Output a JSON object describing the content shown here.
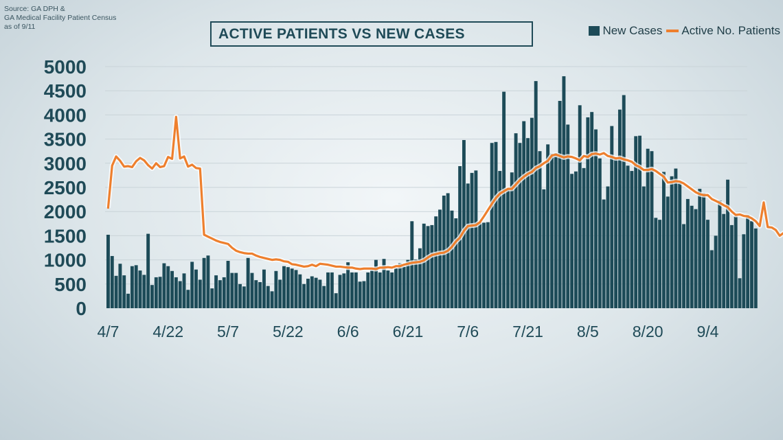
{
  "source": {
    "lines": [
      "Source: GA DPH &",
      "GA Medical Facility Patient Census",
      "as of 9/11"
    ]
  },
  "colors": {
    "bar": "#1d4b58",
    "line": "#ee7f2d",
    "grid": "#c9d3d8",
    "text": "#1f4a57"
  },
  "chart_data": {
    "type": "bar",
    "title": "ACTIVE PATIENTS VS NEW CASES",
    "xlabel": "",
    "ylabel": "",
    "ylim": [
      0,
      5000
    ],
    "grid": true,
    "legend_position": "top-right",
    "y_ticks": [
      0,
      500,
      1000,
      1500,
      2000,
      2500,
      3000,
      3500,
      4000,
      4500,
      5000
    ],
    "x_tick_labels": [
      "4/7",
      "4/22",
      "5/7",
      "5/22",
      "6/6",
      "6/21",
      "7/6",
      "7/21",
      "8/5",
      "8/20",
      "9/4"
    ],
    "x_tick_day_index": [
      0,
      15,
      30,
      45,
      60,
      75,
      90,
      105,
      120,
      135,
      150
    ],
    "series": [
      {
        "name": "New Cases",
        "type": "bar",
        "values": [
          1520,
          1080,
          670,
          920,
          680,
          300,
          870,
          890,
          780,
          690,
          1540,
          480,
          640,
          650,
          930,
          870,
          770,
          640,
          560,
          720,
          380,
          960,
          800,
          590,
          1040,
          1090,
          410,
          680,
          580,
          640,
          980,
          730,
          730,
          500,
          450,
          1040,
          730,
          580,
          540,
          800,
          460,
          350,
          770,
          590,
          870,
          850,
          820,
          790,
          700,
          500,
          610,
          660,
          630,
          590,
          460,
          740,
          740,
          310,
          690,
          720,
          950,
          740,
          740,
          550,
          560,
          740,
          790,
          1000,
          740,
          1020,
          780,
          740,
          830,
          930,
          860,
          1000,
          1800,
          1010,
          1240,
          1750,
          1700,
          1720,
          1900,
          2040,
          2330,
          2380,
          2020,
          1860,
          2940,
          3480,
          2580,
          2800,
          2850,
          1780,
          1770,
          1780,
          3420,
          3440,
          2840,
          4480,
          2450,
          2810,
          3620,
          3420,
          3870,
          3520,
          3940,
          4700,
          3250,
          2460,
          3390,
          3200,
          3210,
          4290,
          4800,
          3800,
          2780,
          2830,
          4200,
          2900,
          3950,
          4060,
          3700,
          3100,
          2250,
          2520,
          3770,
          3100,
          4110,
          4410,
          2950,
          2840,
          3560,
          3570,
          2520,
          3300,
          3250,
          1870,
          1830,
          2820,
          2310,
          2730,
          2890,
          2590,
          1740,
          2260,
          2120,
          2050,
          2470,
          2380,
          1830,
          1200,
          1500,
          2230,
          1950,
          2660,
          1720,
          1900,
          620,
          1530,
          1930,
          1800,
          1650
        ]
      },
      {
        "name": "Active No. Patients",
        "type": "line",
        "values": [
          2080,
          2950,
          3140,
          3050,
          2930,
          2940,
          2920,
          3040,
          3110,
          3060,
          2960,
          2890,
          3000,
          2920,
          2940,
          3130,
          3090,
          3960,
          3100,
          3140,
          2930,
          2970,
          2900,
          2890,
          1520,
          1480,
          1440,
          1400,
          1370,
          1350,
          1330,
          1250,
          1190,
          1160,
          1140,
          1130,
          1130,
          1090,
          1060,
          1040,
          1020,
          1000,
          1010,
          1000,
          970,
          960,
          910,
          900,
          880,
          860,
          870,
          900,
          870,
          920,
          910,
          900,
          880,
          860,
          860,
          850,
          840,
          840,
          820,
          810,
          820,
          820,
          820,
          810,
          840,
          840,
          850,
          840,
          870,
          870,
          900,
          920,
          940,
          950,
          960,
          990,
          1050,
          1100,
          1120,
          1140,
          1150,
          1190,
          1270,
          1380,
          1460,
          1600,
          1700,
          1710,
          1720,
          1780,
          1900,
          2030,
          2160,
          2280,
          2370,
          2420,
          2470,
          2470,
          2560,
          2650,
          2720,
          2780,
          2820,
          2900,
          2940,
          3000,
          3050,
          3160,
          3180,
          3150,
          3120,
          3140,
          3130,
          3100,
          3060,
          3150,
          3130,
          3190,
          3200,
          3180,
          3210,
          3150,
          3130,
          3100,
          3110,
          3080,
          3060,
          3030,
          2960,
          2920,
          2860,
          2860,
          2880,
          2840,
          2780,
          2720,
          2600,
          2610,
          2630,
          2620,
          2580,
          2520,
          2460,
          2400,
          2360,
          2340,
          2340,
          2260,
          2220,
          2180,
          2130,
          2090,
          2000,
          1930,
          1940,
          1910,
          1900,
          1860,
          1800,
          1700,
          2190,
          1680,
          1670,
          1620,
          1500,
          1560,
          1550
        ]
      }
    ]
  }
}
